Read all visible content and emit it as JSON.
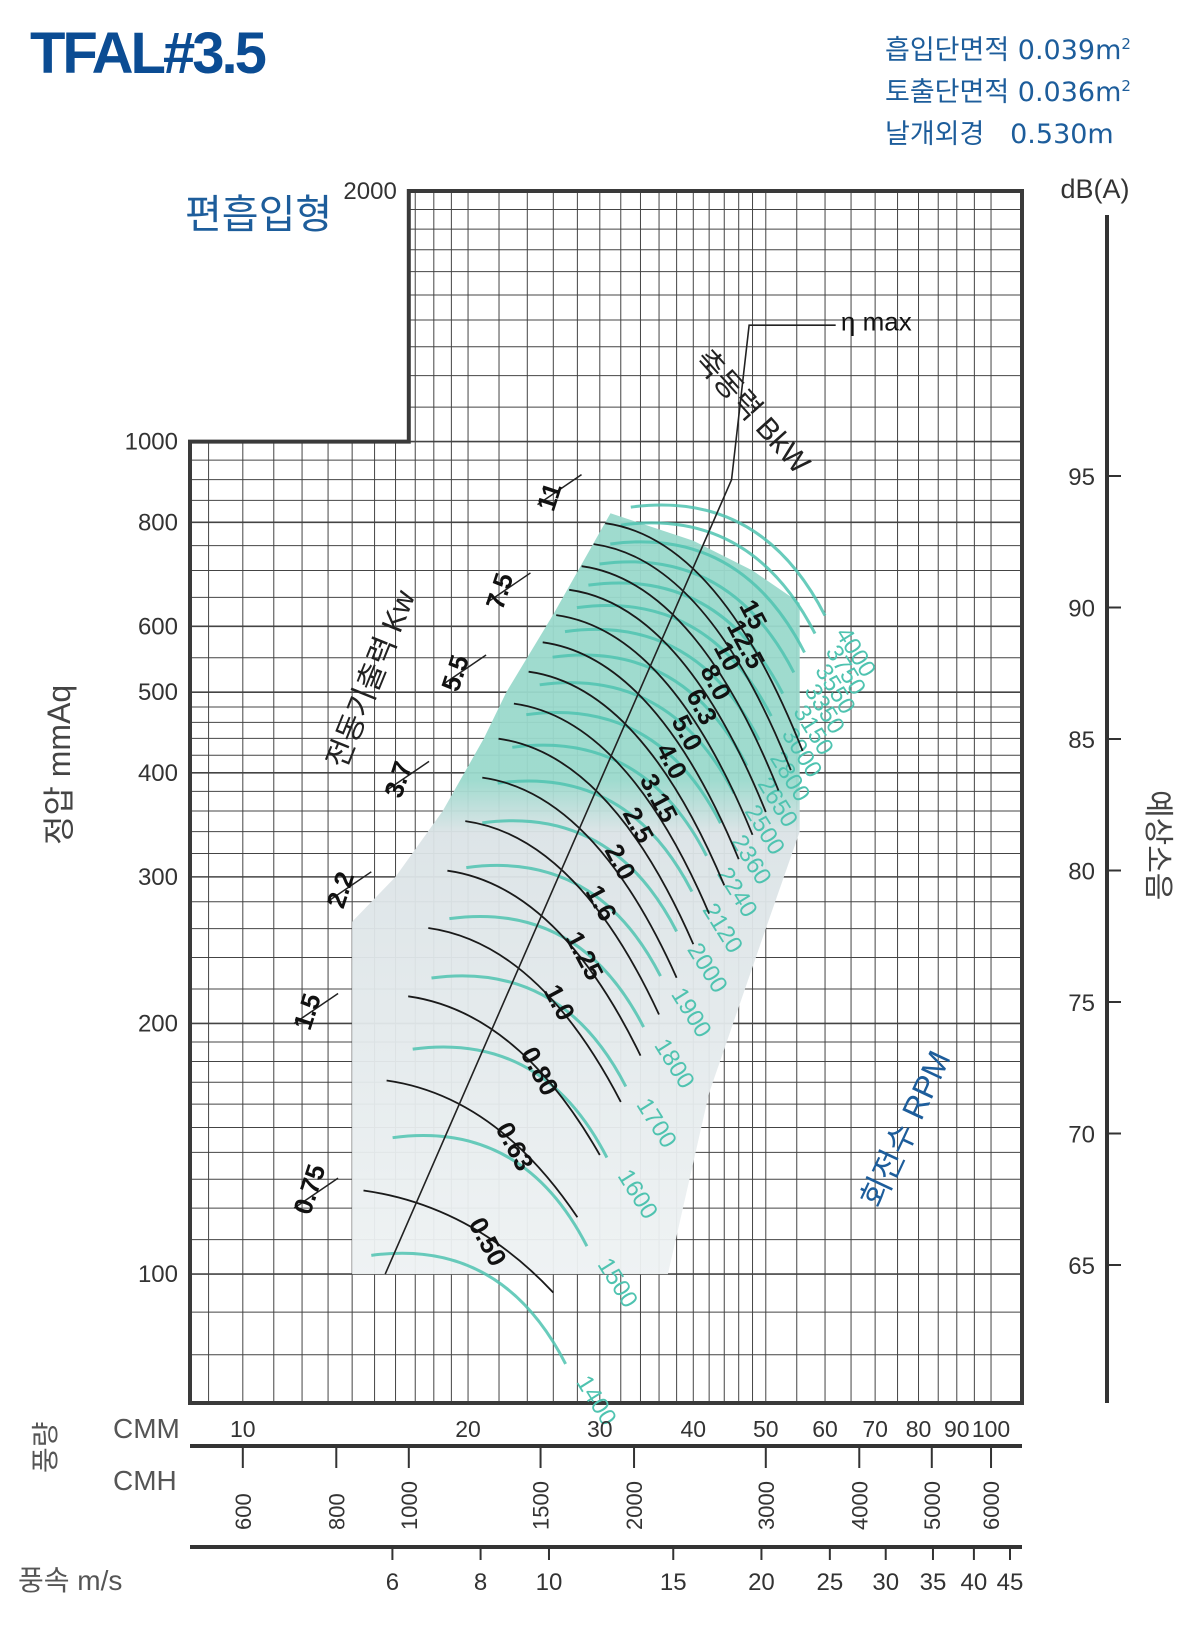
{
  "header": {
    "model": "TFAL#3.5",
    "chart_type_label": "편흡입형",
    "specs": [
      {
        "label": "흡입단면적",
        "value": "0.039m",
        "sup": "2"
      },
      {
        "label": "토출단면적",
        "value": "0.036m",
        "sup": "2"
      },
      {
        "label": "날개외경",
        "value": "0.530m",
        "sup": ""
      }
    ]
  },
  "colors": {
    "frame": "#3a3a3a",
    "grid": "#444444",
    "curve": "#1a1a1a",
    "rpm": "#4fc3b0",
    "shade_high": "#9ad9cc",
    "shade_low": "#dbe3e6",
    "accent_text": "#1d5d9b"
  },
  "chart_data": {
    "type": "line",
    "title": "TFAL#3.5",
    "ylabel": "정압 mmAq",
    "y_scale": "log",
    "ylim": [
      70,
      2000
    ],
    "y_ticks": [
      100,
      200,
      300,
      400,
      500,
      600,
      800,
      1000,
      2000
    ],
    "x_scale": "log",
    "xlim_cmm": [
      8.5,
      110
    ],
    "flow_label": "풍량",
    "cmm_label": "CMM",
    "cmm_ticks": [
      10,
      20,
      30,
      40,
      50,
      60,
      70,
      80,
      90,
      100
    ],
    "cmh_label": "CMH",
    "cmh_ticks": [
      600,
      800,
      1000,
      1500,
      2000,
      3000,
      4000,
      5000,
      6000
    ],
    "velocity_label": "풍속 m/s",
    "velocity_ticks": [
      6,
      8,
      10,
      15,
      20,
      25,
      30,
      35,
      40,
      45
    ],
    "db_label": "dB(A)",
    "db_ticks": [
      65,
      70,
      75,
      80,
      85,
      90,
      95
    ],
    "noise_label": "예상소음",
    "rpm_label": "회전수 RPM",
    "rpm_values": [
      1400,
      1500,
      1600,
      1700,
      1800,
      1900,
      2000,
      2120,
      2240,
      2360,
      2500,
      2650,
      2800,
      3000,
      3150,
      3350,
      3550,
      3750,
      4000
    ],
    "bkw_label": "축동력 BkW",
    "bkw_values": [
      "0.50",
      "0.63",
      "0.80",
      "1.0",
      "1.25",
      "1.6",
      "2.0",
      "2.5",
      "3.15",
      "4.0",
      "5.0",
      "6.3",
      "8.0",
      "10",
      "12.5",
      "15"
    ],
    "motor_label": "전동기출력 Kw",
    "motor_values": [
      "0.75",
      "1.5",
      "2.2",
      "3.7",
      "5.5",
      "7.5",
      "11"
    ],
    "eta_label": "η max"
  }
}
